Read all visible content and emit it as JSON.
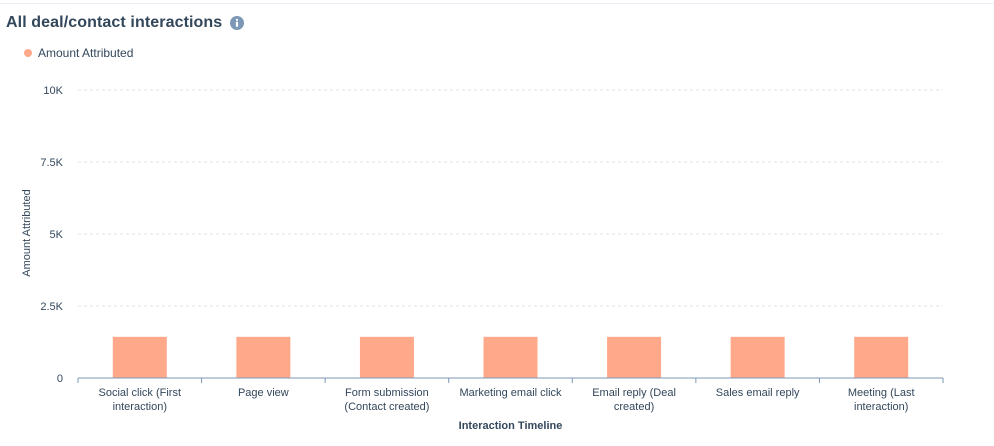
{
  "header": {
    "title": "All deal/contact interactions",
    "info_icon": "info-circle-icon"
  },
  "colors": {
    "bar": "#ffa88a",
    "grid": "#dfe3eb",
    "axis": "#7c98b6",
    "text": "#33475b",
    "info_icon": "#7c98b6"
  },
  "chart_data": {
    "type": "bar",
    "title": "All deal/contact interactions",
    "xlabel": "Interaction Timeline",
    "ylabel": "Amount Attributed",
    "legend": {
      "position": "top-left",
      "entries": [
        "Amount Attributed"
      ]
    },
    "grid": true,
    "ylim": [
      0,
      10000
    ],
    "yticks": [
      {
        "value": 0,
        "label": "0"
      },
      {
        "value": 2500,
        "label": "2.5K"
      },
      {
        "value": 5000,
        "label": "5K"
      },
      {
        "value": 7500,
        "label": "7.5K"
      },
      {
        "value": 10000,
        "label": "10K"
      }
    ],
    "categories": [
      [
        "Social click (First",
        "interaction)"
      ],
      [
        "Page view"
      ],
      [
        "Form submission",
        "(Contact created)"
      ],
      [
        "Marketing email click"
      ],
      [
        "Email reply (Deal",
        "created)"
      ],
      [
        "Sales email reply"
      ],
      [
        "Meeting (Last",
        "interaction)"
      ]
    ],
    "series": [
      {
        "name": "Amount Attributed",
        "values": [
          1430,
          1430,
          1430,
          1430,
          1430,
          1430,
          1430
        ]
      }
    ]
  }
}
